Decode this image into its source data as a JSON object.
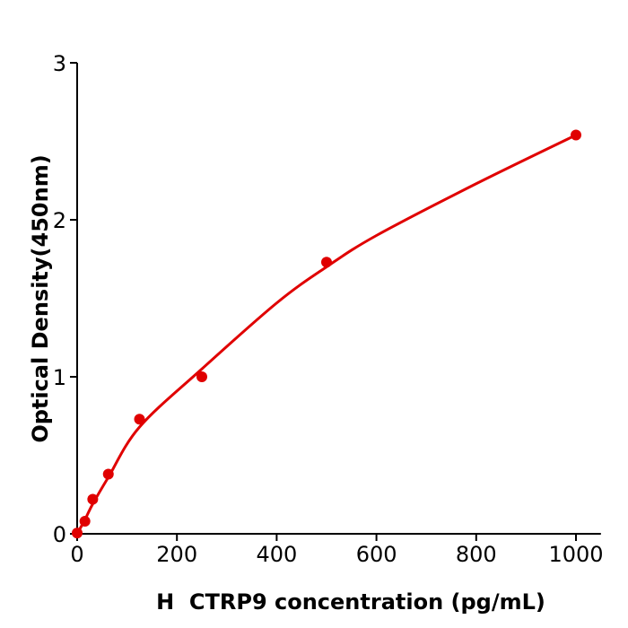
{
  "chart_data": {
    "type": "scatter",
    "title": "",
    "xlabel": "H  CTRP9 concentration (pg/mL)",
    "ylabel": "Optical Density(450nm)",
    "xlim": [
      0,
      1050
    ],
    "ylim": [
      0,
      3
    ],
    "xticks": [
      "0",
      "200",
      "400",
      "600",
      "800",
      "1000"
    ],
    "yticks": [
      "0",
      "1",
      "2",
      "3"
    ],
    "grid": false,
    "color": "#e00000",
    "points": {
      "x": [
        0,
        15.6,
        31.25,
        62.5,
        125,
        250,
        500,
        1000
      ],
      "y": [
        0.005,
        0.08,
        0.22,
        0.38,
        0.73,
        1.0,
        1.73,
        2.54
      ]
    },
    "fit_curve": {
      "x": [
        0,
        15.6,
        31.25,
        62.5,
        125,
        250,
        400,
        500,
        600,
        800,
        1000
      ],
      "y": [
        0,
        0.09,
        0.19,
        0.36,
        0.68,
        1.05,
        1.47,
        1.7,
        1.9,
        2.23,
        2.54
      ]
    }
  }
}
